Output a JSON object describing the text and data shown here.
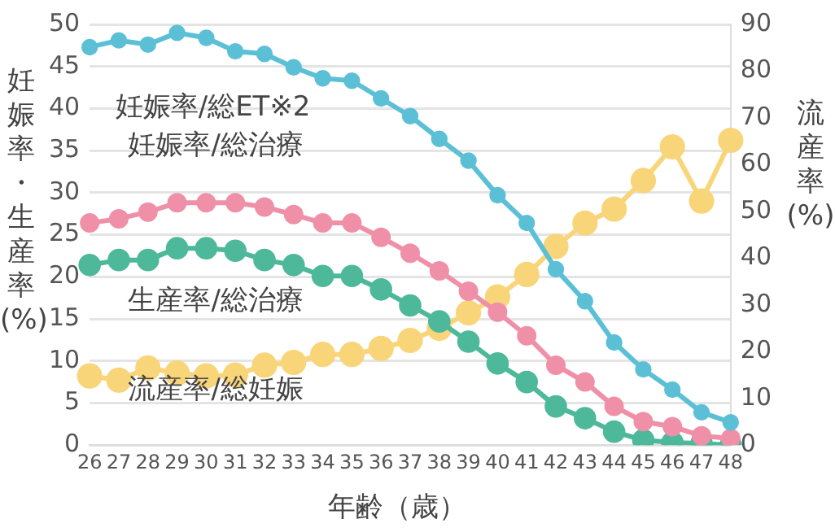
{
  "chart_data": {
    "type": "line",
    "xlabel": "年齢（歳）",
    "ylabel": "妊娠率・生産率(%)",
    "y2label": "流産率(%)",
    "categories": [
      "26",
      "27",
      "28",
      "29",
      "30",
      "31",
      "32",
      "33",
      "34",
      "35",
      "36",
      "37",
      "38",
      "39",
      "40",
      "41",
      "42",
      "43",
      "44",
      "45",
      "46",
      "47",
      "48"
    ],
    "series": [
      {
        "name": "妊娠率/総ET※2",
        "color": "#5bc0d6",
        "values": [
          47.3,
          48.1,
          47.6,
          49.0,
          48.4,
          46.8,
          46.5,
          44.9,
          43.6,
          43.3,
          41.2,
          39.1,
          36.4,
          33.8,
          29.7,
          26.4,
          20.9,
          17.1,
          12.2,
          9.0,
          6.6,
          3.9,
          2.7
        ]
      },
      {
        "name": "妊娠率/総治療",
        "color": "#ef90a8",
        "values": [
          26.4,
          26.9,
          27.7,
          28.8,
          28.8,
          28.8,
          28.3,
          27.4,
          26.4,
          26.4,
          24.7,
          22.8,
          20.7,
          18.3,
          15.8,
          13.0,
          9.5,
          7.5,
          4.6,
          2.8,
          2.2,
          1.1,
          0.8
        ]
      },
      {
        "name": "生産率/総治療",
        "color": "#4db89a",
        "values": [
          21.4,
          22.0,
          22.0,
          23.4,
          23.4,
          23.1,
          22.0,
          21.4,
          20.1,
          20.1,
          18.5,
          16.6,
          14.7,
          12.3,
          9.7,
          7.5,
          4.6,
          3.2,
          1.6,
          0.6,
          0.3,
          0.2,
          0.0
        ]
      },
      {
        "name": "流産率/総妊娠",
        "color": "#f9d57a",
        "axis": "y2",
        "values": [
          14.8,
          13.9,
          16.5,
          15.4,
          14.8,
          15.0,
          17.1,
          17.7,
          19.4,
          19.4,
          20.7,
          22.4,
          25.0,
          28.3,
          31.7,
          36.5,
          42.5,
          47.5,
          50.5,
          56.6,
          63.8,
          52.2,
          65.2
        ]
      }
    ],
    "ylim": [
      0,
      50
    ],
    "yticks": [
      0,
      5,
      10,
      15,
      20,
      25,
      30,
      35,
      40,
      45,
      50
    ],
    "y2lim": [
      0,
      90
    ],
    "y2ticks": [
      0,
      10,
      20,
      30,
      40,
      50,
      60,
      70,
      80,
      90
    ],
    "grid": "y",
    "marker": "circle",
    "line_style": "solid",
    "legend": false
  }
}
